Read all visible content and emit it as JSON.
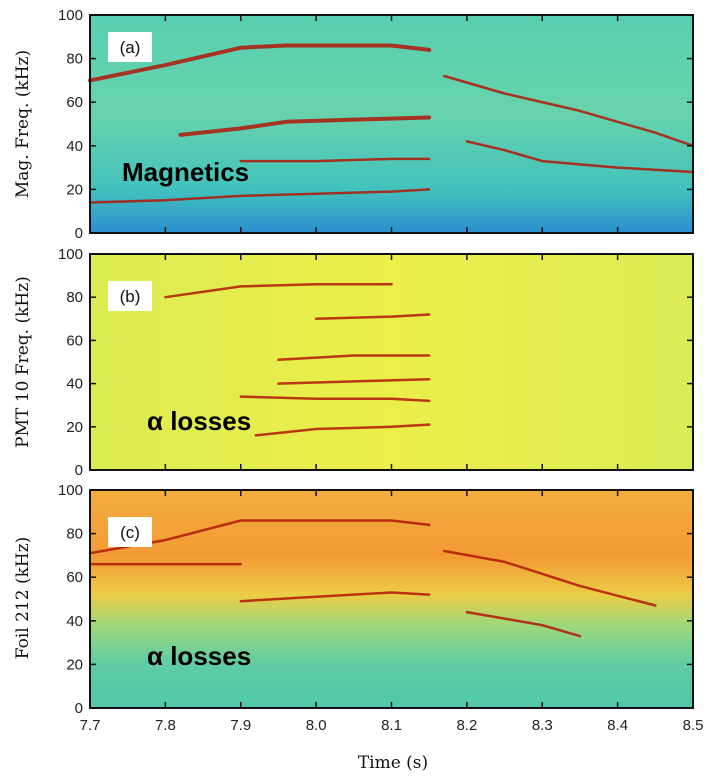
{
  "figure": {
    "xlabel": "Time (s)",
    "x_ticks": [
      "7.7",
      "7.8",
      "7.9",
      "8.0",
      "8.1",
      "8.2",
      "8.3",
      "8.4",
      "8.5"
    ],
    "y_ticks": [
      "0",
      "20",
      "40",
      "60",
      "80",
      "100"
    ]
  },
  "colors": {
    "panel_a_bg": "#45c8b4",
    "panel_b_bg": "#e6ee4c",
    "panel_c_bg_top": "#f3a43a",
    "panel_c_bg_bottom": "#56c9aa",
    "mode_line": "#b01808"
  },
  "chart_data": [
    {
      "type": "heatmap",
      "panel_label": "(a)",
      "ylabel": "Mag. Freq. (kHz)",
      "annotation": "Magnetics",
      "xlim": [
        7.7,
        8.5
      ],
      "ylim": [
        0,
        100
      ],
      "series": [
        {
          "x": [
            7.7,
            7.8,
            7.9,
            7.96,
            8.05,
            8.1,
            8.15
          ],
          "y": [
            70,
            77,
            85,
            86,
            86,
            86,
            84
          ]
        },
        {
          "x": [
            7.82,
            7.9,
            7.96,
            8.05,
            8.15
          ],
          "y": [
            45,
            48,
            51,
            52,
            53
          ]
        },
        {
          "x": [
            8.2,
            8.25,
            8.3,
            8.4,
            8.5
          ],
          "y": [
            42,
            38,
            33,
            30,
            28
          ]
        },
        {
          "x": [
            8.17,
            8.25,
            8.35,
            8.45,
            8.5
          ],
          "y": [
            72,
            64,
            56,
            46,
            40
          ]
        },
        {
          "x": [
            7.9,
            8.0,
            8.1,
            8.15
          ],
          "y": [
            33,
            33,
            34,
            34
          ]
        },
        {
          "x": [
            7.7,
            7.8,
            7.9,
            8.0,
            8.1,
            8.15
          ],
          "y": [
            14,
            15,
            17,
            18,
            19,
            20
          ]
        }
      ]
    },
    {
      "type": "heatmap",
      "panel_label": "(b)",
      "ylabel": "PMT 10 Freq. (kHz)",
      "annotation": "α losses",
      "xlim": [
        7.7,
        8.5
      ],
      "ylim": [
        0,
        100
      ],
      "series": [
        {
          "x": [
            7.8,
            7.9,
            8.0,
            8.1
          ],
          "y": [
            80,
            85,
            86,
            86
          ]
        },
        {
          "x": [
            8.0,
            8.1,
            8.15
          ],
          "y": [
            70,
            71,
            72
          ]
        },
        {
          "x": [
            7.95,
            8.05,
            8.15
          ],
          "y": [
            51,
            53,
            53
          ]
        },
        {
          "x": [
            7.95,
            8.05,
            8.15
          ],
          "y": [
            40,
            41,
            42
          ]
        },
        {
          "x": [
            7.9,
            8.0,
            8.1,
            8.15
          ],
          "y": [
            34,
            33,
            33,
            32
          ]
        },
        {
          "x": [
            7.92,
            8.0,
            8.1,
            8.15
          ],
          "y": [
            16,
            19,
            20,
            21
          ]
        }
      ]
    },
    {
      "type": "heatmap",
      "panel_label": "(c)",
      "ylabel": "Foil 212 (kHz)",
      "annotation": "α losses",
      "xlim": [
        7.7,
        8.5
      ],
      "ylim": [
        0,
        100
      ],
      "series": [
        {
          "x": [
            7.7,
            7.8,
            7.9,
            8.0,
            8.1,
            8.15
          ],
          "y": [
            71,
            77,
            86,
            86,
            86,
            84
          ]
        },
        {
          "x": [
            7.7,
            7.8,
            7.9
          ],
          "y": [
            66,
            66,
            66
          ]
        },
        {
          "x": [
            7.9,
            8.0,
            8.1,
            8.15
          ],
          "y": [
            49,
            51,
            53,
            52
          ]
        },
        {
          "x": [
            8.2,
            8.25,
            8.3,
            8.35
          ],
          "y": [
            44,
            41,
            38,
            33
          ]
        },
        {
          "x": [
            8.17,
            8.25,
            8.35,
            8.45
          ],
          "y": [
            72,
            67,
            56,
            47
          ]
        }
      ]
    }
  ]
}
